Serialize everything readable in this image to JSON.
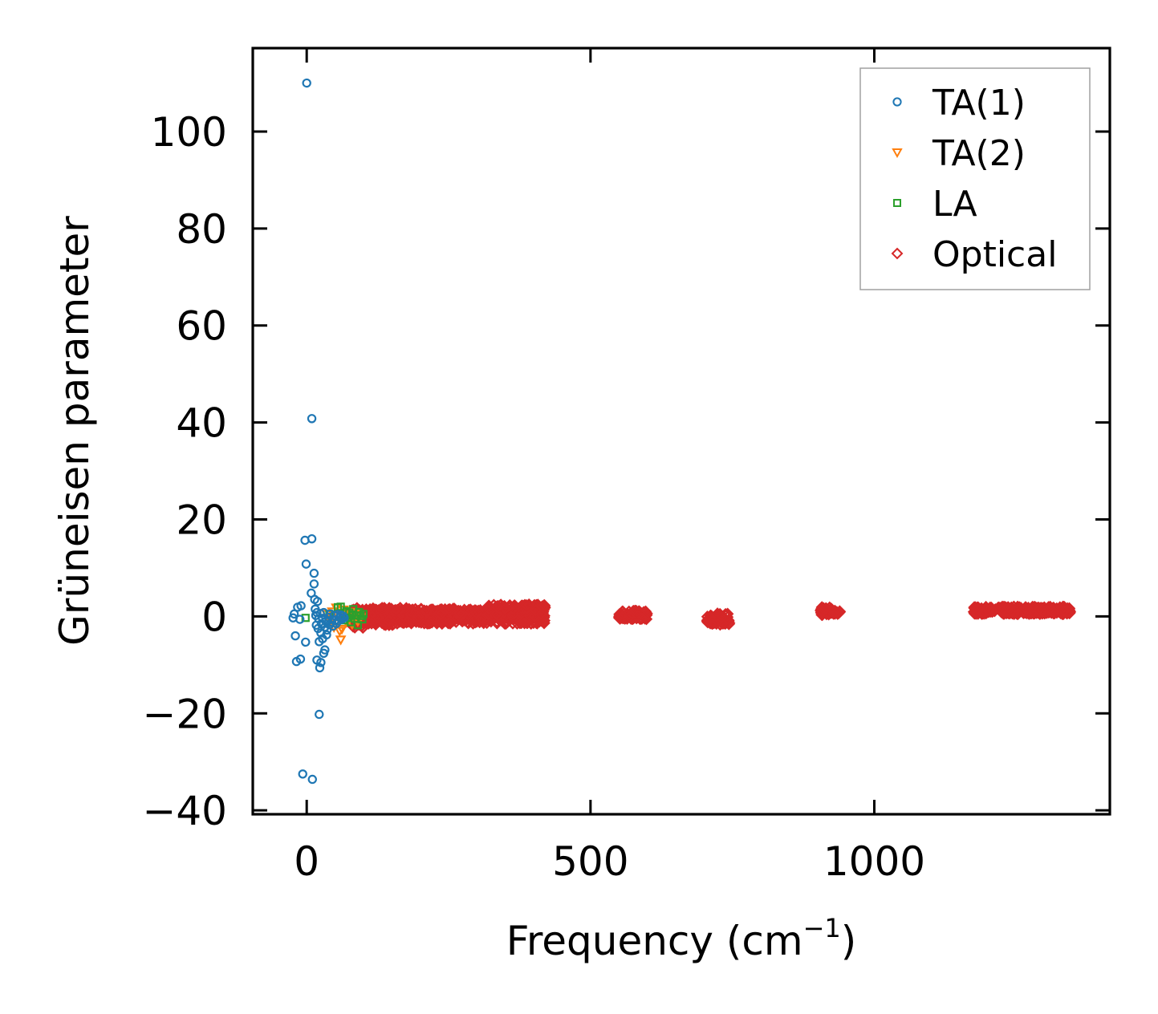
{
  "chart_data": {
    "type": "scatter",
    "xlabel": "Frequency (cm",
    "xlabel_superscript": "−1",
    "xlabel_suffix": ")",
    "ylabel": "Grüneisen parameter",
    "xlim": [
      -95,
      1415
    ],
    "ylim": [
      -40.8,
      117.2
    ],
    "x_ticks": [
      0,
      500,
      1000
    ],
    "x_tick_labels": [
      "0",
      "500",
      "1000"
    ],
    "y_ticks": [
      -40,
      -20,
      0,
      20,
      40,
      60,
      80,
      100
    ],
    "y_tick_labels": [
      "−40",
      "−20",
      "0",
      "20",
      "40",
      "60",
      "80",
      "100"
    ],
    "grid": false,
    "legend_position": "top-right",
    "series": [
      {
        "name": "TA(1)",
        "marker": "circle",
        "color": "#1f77b4",
        "points": [
          [
            0,
            110
          ],
          [
            9,
            40.8
          ],
          [
            -3,
            15.7
          ],
          [
            9,
            16
          ],
          [
            -1,
            10.8
          ],
          [
            13,
            8.9
          ],
          [
            13,
            6.7
          ],
          [
            8,
            4.8
          ],
          [
            14,
            3.5
          ],
          [
            19,
            3.1
          ],
          [
            -10,
            2.2
          ],
          [
            -16,
            1.9
          ],
          [
            -22,
            0.5
          ],
          [
            -24,
            -0.3
          ],
          [
            -12,
            -0.6
          ],
          [
            -20,
            -4
          ],
          [
            -2,
            -5.3
          ],
          [
            22,
            -5.2
          ],
          [
            28,
            -4.6
          ],
          [
            32,
            -6.9
          ],
          [
            30,
            -7.6
          ],
          [
            18,
            -9
          ],
          [
            -11,
            -8.8
          ],
          [
            -18,
            -9.3
          ],
          [
            25,
            -9.5
          ],
          [
            23,
            -10.6
          ],
          [
            22,
            -20.2
          ],
          [
            -7,
            -32.5
          ],
          [
            10,
            -33.6
          ],
          [
            15,
            1.5
          ],
          [
            18,
            0.8
          ],
          [
            21,
            -0.5
          ],
          [
            24,
            0.6
          ],
          [
            26,
            -1.5
          ],
          [
            28,
            -0.4
          ],
          [
            30,
            0.8
          ],
          [
            32,
            -2.2
          ],
          [
            34,
            -1
          ],
          [
            36,
            -2.8
          ],
          [
            38,
            -0.2
          ],
          [
            40,
            -1.7
          ],
          [
            42,
            0.5
          ],
          [
            44,
            -1.2
          ],
          [
            46,
            -2
          ],
          [
            48,
            0.2
          ],
          [
            50,
            -0.8
          ],
          [
            52,
            -1.5
          ],
          [
            54,
            0.4
          ],
          [
            56,
            -0.9
          ],
          [
            58,
            -0.2
          ],
          [
            60,
            0.3
          ],
          [
            62,
            -0.6
          ],
          [
            64,
            0.1
          ],
          [
            66,
            -0.3
          ],
          [
            25,
            -3.4
          ],
          [
            35,
            -3.8
          ],
          [
            20,
            -2.5
          ],
          [
            17,
            -1.8
          ],
          [
            16,
            0.2
          ]
        ]
      },
      {
        "name": "TA(2)",
        "marker": "triangle-down",
        "color": "#ff7f0e",
        "points": [
          [
            35,
            0.5
          ],
          [
            40,
            -0.5
          ],
          [
            45,
            1
          ],
          [
            50,
            -1.5
          ],
          [
            55,
            0.2
          ],
          [
            58,
            -3
          ],
          [
            60,
            -4.8
          ],
          [
            62,
            -2.6
          ],
          [
            65,
            1.4
          ],
          [
            68,
            0.1
          ],
          [
            70,
            -1.2
          ],
          [
            72,
            0.8
          ],
          [
            75,
            -0.6
          ],
          [
            78,
            0.4
          ],
          [
            80,
            -1.6
          ],
          [
            82,
            0.9
          ],
          [
            85,
            -0.4
          ],
          [
            88,
            0.6
          ],
          [
            90,
            -1
          ],
          [
            92,
            0.3
          ],
          [
            95,
            -0.2
          ],
          [
            48,
            -2.2
          ],
          [
            52,
            1.8
          ]
        ]
      },
      {
        "name": "LA",
        "marker": "square",
        "color": "#2ca02c",
        "points": [
          [
            -2,
            -0.3
          ],
          [
            40,
            0.5
          ],
          [
            55,
            1.9
          ],
          [
            60,
            2
          ],
          [
            65,
            -0.8
          ],
          [
            70,
            1.1
          ],
          [
            72,
            -0.3
          ],
          [
            75,
            0.8
          ],
          [
            78,
            -1.2
          ],
          [
            80,
            0.4
          ],
          [
            82,
            1.5
          ],
          [
            85,
            -0.5
          ],
          [
            88,
            0.2
          ],
          [
            90,
            -1.8
          ],
          [
            92,
            0.9
          ],
          [
            95,
            0.1
          ],
          [
            98,
            -0.6
          ],
          [
            100,
            0.5
          ]
        ]
      },
      {
        "name": "Optical",
        "marker": "diamond",
        "color": "#d62728",
        "bands": [
          [
            80,
            420,
            -1.5,
            1.5
          ],
          [
            80,
            100,
            -2.5,
            2
          ],
          [
            100,
            180,
            -1.8,
            1.8
          ],
          [
            180,
            260,
            -1.2,
            1.6
          ],
          [
            260,
            320,
            -0.8,
            1.2
          ],
          [
            320,
            420,
            0,
            2.5
          ],
          [
            550,
            600,
            -0.6,
            1.2
          ],
          [
            705,
            745,
            -1.8,
            0.6
          ],
          [
            905,
            940,
            0.3,
            1.9
          ],
          [
            1175,
            1345,
            0.5,
            2
          ]
        ]
      }
    ]
  }
}
